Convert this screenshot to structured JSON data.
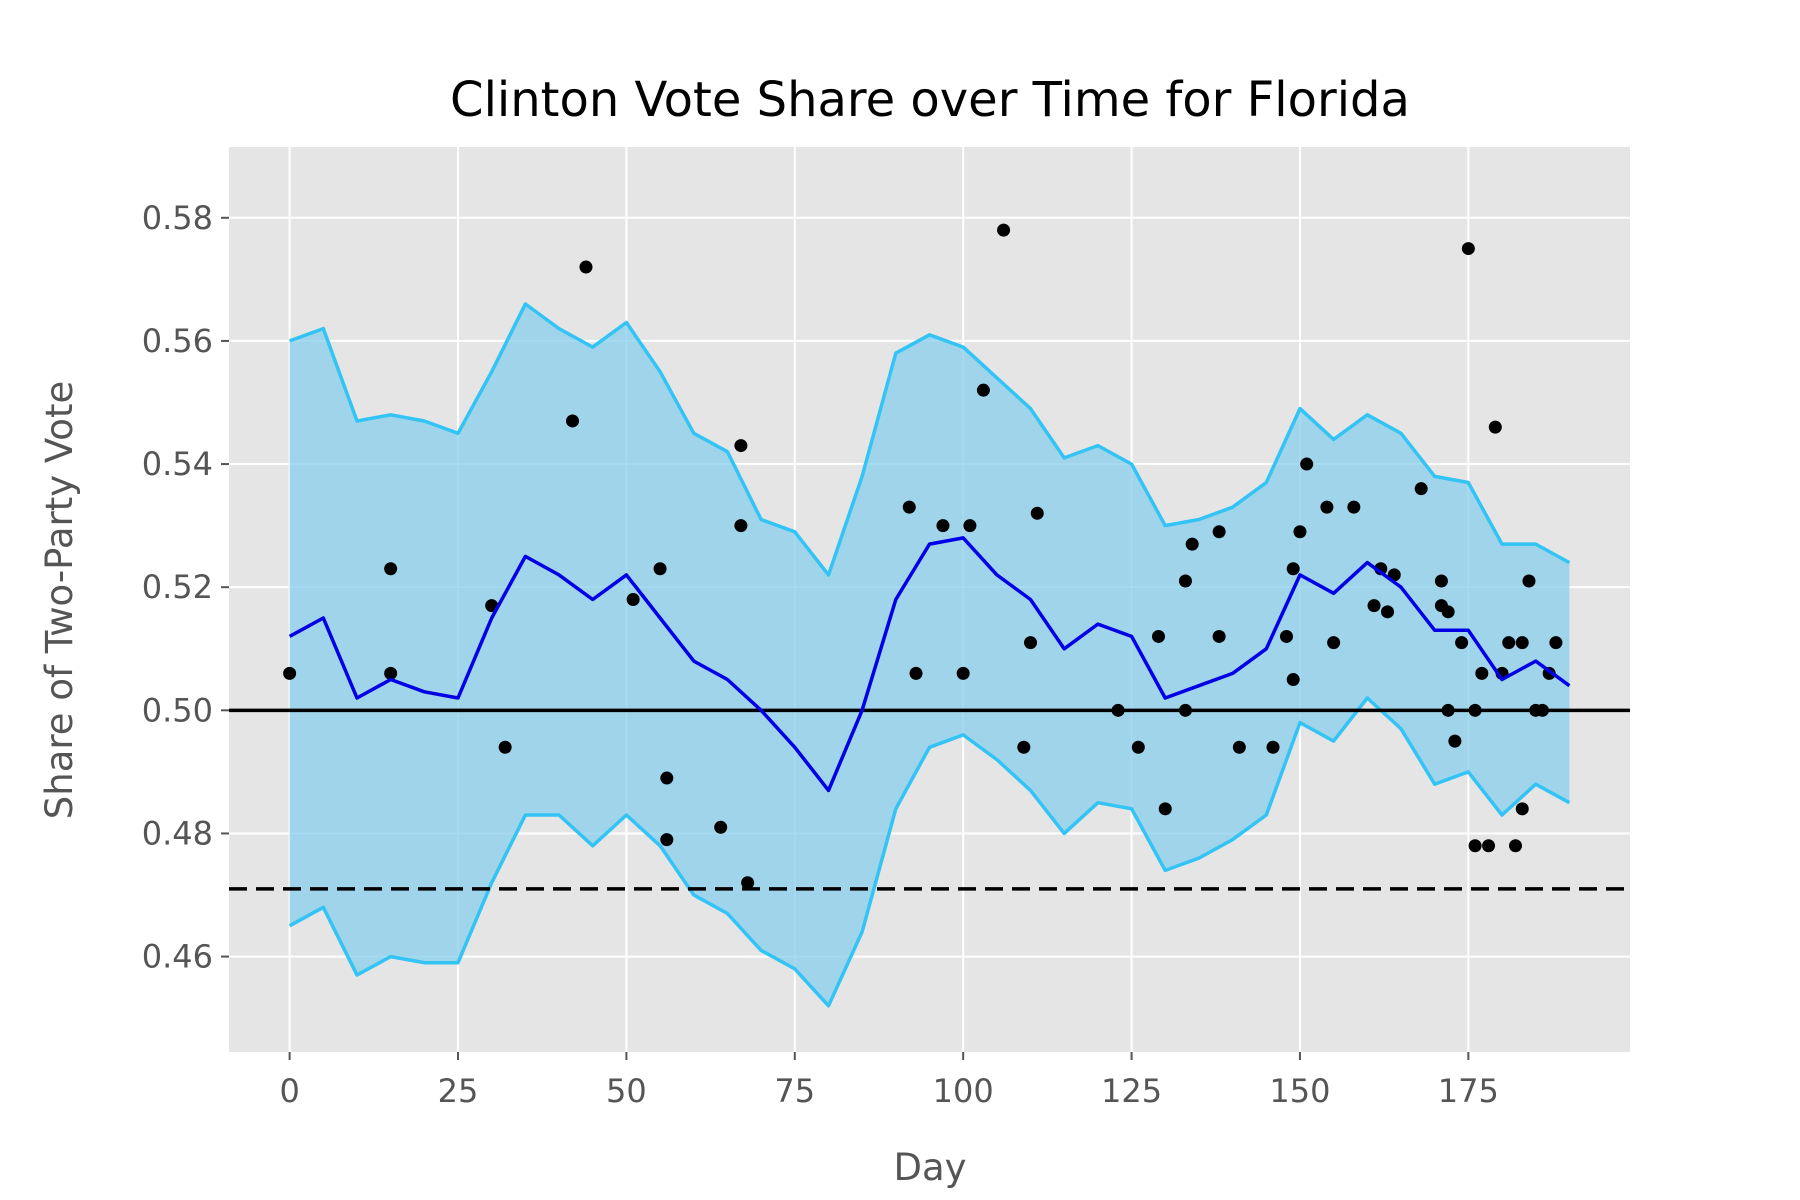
{
  "chart_data": {
    "type": "line",
    "title": "Clinton Vote Share over Time for Florida",
    "xlabel": "Day",
    "ylabel": "Share of Two-Party Vote",
    "xlim": [
      -9,
      199
    ],
    "ylim": [
      0.4445,
      0.5915
    ],
    "xticks": [
      0,
      25,
      50,
      75,
      100,
      125,
      150,
      175
    ],
    "xtick_labels": [
      "0",
      "25",
      "50",
      "75",
      "100",
      "125",
      "150",
      "175"
    ],
    "yticks": [
      0.46,
      0.48,
      0.5,
      0.52,
      0.54,
      0.56,
      0.58
    ],
    "ytick_labels": [
      "0.46",
      "0.48",
      "0.50",
      "0.52",
      "0.54",
      "0.56",
      "0.58"
    ],
    "grid": true,
    "legend": "none",
    "colors": {
      "background": "#e5e5e5",
      "grid": "#ffffff",
      "band_fill": "#87ceeb",
      "band_edge": "#33c4f5",
      "mean_line": "#0000e6",
      "reference_line": "#000000",
      "points": "#000000"
    },
    "reference_lines": [
      {
        "y": 0.5,
        "style": "solid"
      },
      {
        "y": 0.471,
        "style": "dashed"
      }
    ],
    "series": [
      {
        "role": "mean",
        "x": [
          0,
          5,
          10,
          15,
          20,
          25,
          30,
          35,
          40,
          45,
          50,
          55,
          60,
          65,
          70,
          75,
          80,
          85,
          90,
          95,
          100,
          105,
          110,
          115,
          120,
          125,
          130,
          135,
          140,
          145,
          150,
          155,
          160,
          165,
          170,
          175,
          180,
          185,
          190
        ],
        "values": [
          0.512,
          0.515,
          0.502,
          0.505,
          0.503,
          0.502,
          0.515,
          0.525,
          0.522,
          0.518,
          0.522,
          0.515,
          0.508,
          0.505,
          0.5,
          0.494,
          0.487,
          0.5,
          0.518,
          0.527,
          0.528,
          0.522,
          0.518,
          0.51,
          0.514,
          0.512,
          0.502,
          0.504,
          0.506,
          0.51,
          0.522,
          0.519,
          0.524,
          0.52,
          0.513,
          0.513,
          0.505,
          0.508,
          0.504
        ]
      },
      {
        "role": "upper",
        "x": [
          0,
          5,
          10,
          15,
          20,
          25,
          30,
          35,
          40,
          45,
          50,
          55,
          60,
          65,
          70,
          75,
          80,
          85,
          90,
          95,
          100,
          105,
          110,
          115,
          120,
          125,
          130,
          135,
          140,
          145,
          150,
          155,
          160,
          165,
          170,
          175,
          180,
          185,
          190
        ],
        "values": [
          0.56,
          0.562,
          0.547,
          0.548,
          0.547,
          0.545,
          0.555,
          0.566,
          0.562,
          0.559,
          0.563,
          0.555,
          0.545,
          0.542,
          0.531,
          0.529,
          0.522,
          0.538,
          0.558,
          0.561,
          0.559,
          0.554,
          0.549,
          0.541,
          0.543,
          0.54,
          0.53,
          0.531,
          0.533,
          0.537,
          0.549,
          0.544,
          0.548,
          0.545,
          0.538,
          0.537,
          0.527,
          0.527,
          0.524
        ]
      },
      {
        "role": "lower",
        "x": [
          0,
          5,
          10,
          15,
          20,
          25,
          30,
          35,
          40,
          45,
          50,
          55,
          60,
          65,
          70,
          75,
          80,
          85,
          90,
          95,
          100,
          105,
          110,
          115,
          120,
          125,
          130,
          135,
          140,
          145,
          150,
          155,
          160,
          165,
          170,
          175,
          180,
          185,
          190
        ],
        "values": [
          0.465,
          0.468,
          0.457,
          0.46,
          0.459,
          0.459,
          0.472,
          0.483,
          0.483,
          0.478,
          0.483,
          0.478,
          0.47,
          0.467,
          0.461,
          0.458,
          0.452,
          0.464,
          0.484,
          0.494,
          0.496,
          0.492,
          0.487,
          0.48,
          0.485,
          0.484,
          0.474,
          0.476,
          0.479,
          0.483,
          0.498,
          0.495,
          0.502,
          0.497,
          0.488,
          0.49,
          0.483,
          0.488,
          0.485
        ]
      }
    ],
    "points": {
      "x": [
        0,
        15,
        15,
        30,
        32,
        42,
        44,
        51,
        55,
        56,
        56,
        64,
        67,
        67,
        68,
        92,
        93,
        97,
        100,
        101,
        103,
        106,
        109,
        110,
        111,
        123,
        126,
        129,
        130,
        133,
        133,
        134,
        138,
        138,
        141,
        146,
        148,
        149,
        149,
        150,
        151,
        154,
        155,
        158,
        161,
        162,
        163,
        164,
        168,
        171,
        171,
        172,
        172,
        173,
        174,
        175,
        176,
        176,
        177,
        178,
        179,
        180,
        181,
        182,
        183,
        183,
        184,
        185,
        186,
        187,
        188
      ],
      "y": [
        0.506,
        0.523,
        0.506,
        0.517,
        0.494,
        0.547,
        0.572,
        0.518,
        0.523,
        0.489,
        0.479,
        0.481,
        0.543,
        0.53,
        0.472,
        0.533,
        0.506,
        0.53,
        0.506,
        0.53,
        0.552,
        0.578,
        0.494,
        0.511,
        0.532,
        0.5,
        0.494,
        0.512,
        0.484,
        0.521,
        0.5,
        0.527,
        0.529,
        0.512,
        0.494,
        0.494,
        0.512,
        0.523,
        0.505,
        0.529,
        0.54,
        0.533,
        0.511,
        0.533,
        0.517,
        0.523,
        0.516,
        0.522,
        0.536,
        0.521,
        0.517,
        0.5,
        0.516,
        0.495,
        0.511,
        0.575,
        0.5,
        0.478,
        0.506,
        0.478,
        0.546,
        0.506,
        0.511,
        0.478,
        0.511,
        0.484,
        0.521,
        0.5,
        0.5,
        0.506,
        0.511
      ]
    }
  }
}
